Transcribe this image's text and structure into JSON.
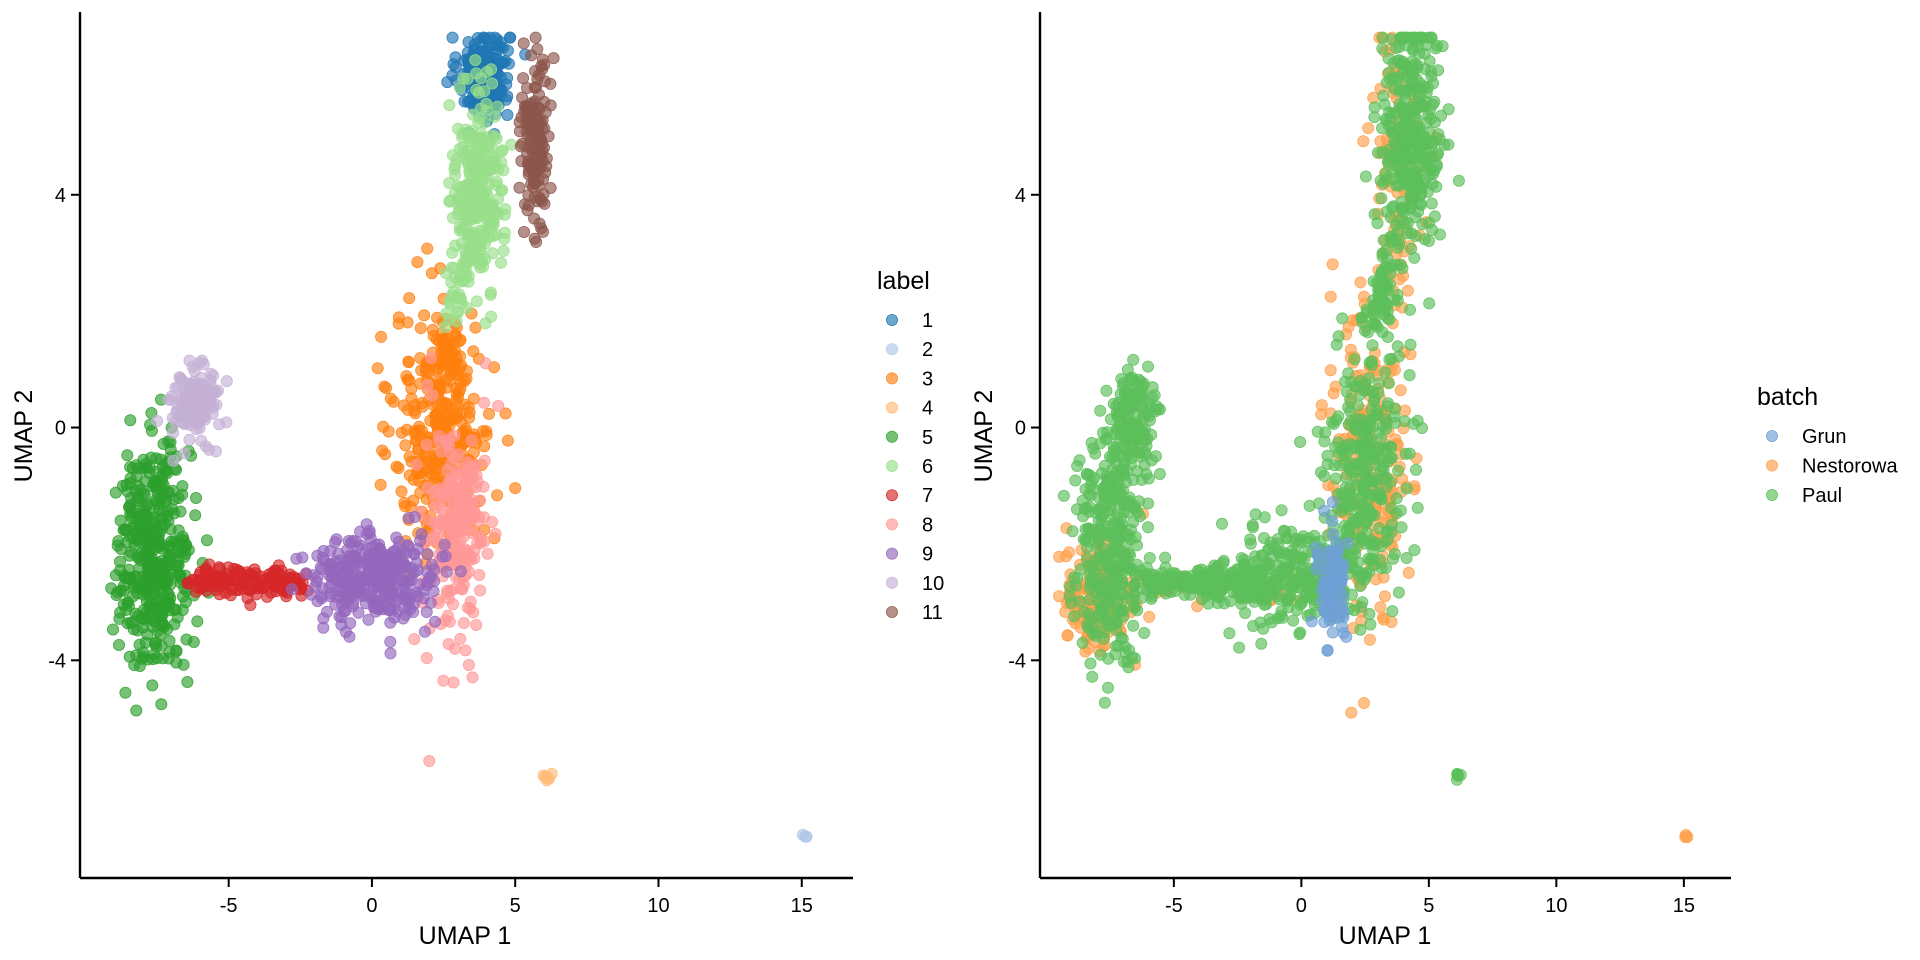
{
  "chart_data": [
    {
      "type": "scatter",
      "xlabel": "UMAP 1",
      "ylabel": "UMAP 2",
      "xlim": [
        -9.7,
        16.3
      ],
      "ylim": [
        -7.5,
        6.9
      ],
      "xticks": [
        -5,
        0,
        5,
        10,
        15
      ],
      "yticks": [
        -4,
        0,
        4
      ],
      "tick_labels_x": [
        "-5",
        "0",
        "5",
        "10",
        "15"
      ],
      "tick_labels_y": [
        "-4",
        "0",
        "4"
      ],
      "grid": false,
      "point_opacity": 0.65,
      "legend": {
        "title": "label",
        "placement": "right",
        "entries": [
          {
            "name": "1",
            "color": "#1f77b4"
          },
          {
            "name": "2",
            "color": "#aec7e8"
          },
          {
            "name": "3",
            "color": "#ff7f0e"
          },
          {
            "name": "4",
            "color": "#ffbb78"
          },
          {
            "name": "5",
            "color": "#2ca02c"
          },
          {
            "name": "6",
            "color": "#98df8a"
          },
          {
            "name": "7",
            "color": "#d62728"
          },
          {
            "name": "8",
            "color": "#ff9896"
          },
          {
            "name": "9",
            "color": "#9467bd"
          },
          {
            "name": "10",
            "color": "#c5b0d5"
          },
          {
            "name": "11",
            "color": "#8c564b"
          }
        ]
      },
      "clusters": [
        {
          "label": "1",
          "color": "#1f77b4",
          "n": 200,
          "shape": "blob",
          "center": [
            3.9,
            6.1
          ],
          "spread": [
            0.45,
            0.4
          ]
        },
        {
          "label": "2",
          "color": "#aec7e8",
          "n": 3,
          "shape": "blob",
          "center": [
            15.1,
            -7.0
          ],
          "spread": [
            0.04,
            0.03
          ]
        },
        {
          "label": "3",
          "color": "#ff7f0e",
          "n": 330,
          "shape": "blob",
          "center": [
            2.5,
            -0.1
          ],
          "spread": [
            0.85,
            1.05
          ]
        },
        {
          "label": "3",
          "color": "#ff7f0e",
          "n": 40,
          "shape": "blob",
          "center": [
            2.7,
            1.2
          ],
          "spread": [
            0.35,
            0.25
          ]
        },
        {
          "label": "4",
          "color": "#ffbb78",
          "n": 6,
          "shape": "blob",
          "center": [
            6.1,
            -6.0
          ],
          "spread": [
            0.06,
            0.05
          ]
        },
        {
          "label": "5",
          "color": "#2ca02c",
          "n": 420,
          "shape": "blob",
          "center": [
            -7.6,
            -2.2
          ],
          "spread": [
            0.65,
            0.95
          ]
        },
        {
          "label": "6",
          "color": "#98df8a",
          "n": 260,
          "shape": "blob",
          "center": [
            3.7,
            4.1
          ],
          "spread": [
            0.45,
            0.85
          ]
        },
        {
          "label": "6",
          "color": "#98df8a",
          "n": 40,
          "shape": "line",
          "from": [
            2.7,
            1.8
          ],
          "to": [
            3.6,
            3.2
          ],
          "spread": [
            0.18,
            0.18
          ]
        },
        {
          "label": "7",
          "color": "#d62728",
          "n": 150,
          "shape": "line",
          "from": [
            -6.2,
            -2.6
          ],
          "to": [
            -2.4,
            -2.7
          ],
          "spread": [
            0.3,
            0.13
          ]
        },
        {
          "label": "8",
          "color": "#ff9896",
          "n": 240,
          "shape": "blob",
          "center": [
            2.9,
            -1.8
          ],
          "spread": [
            0.55,
            0.95
          ]
        },
        {
          "label": "9",
          "color": "#9467bd",
          "n": 340,
          "shape": "blob",
          "center": [
            0.0,
            -2.6
          ],
          "spread": [
            1.2,
            0.4
          ]
        },
        {
          "label": "10",
          "color": "#c5b0d5",
          "n": 130,
          "shape": "blob",
          "center": [
            -6.2,
            0.4
          ],
          "spread": [
            0.4,
            0.32
          ]
        },
        {
          "label": "11",
          "color": "#8c564b",
          "n": 150,
          "shape": "blob",
          "center": [
            5.7,
            5.1
          ],
          "spread": [
            0.25,
            0.75
          ]
        }
      ]
    },
    {
      "type": "scatter",
      "xlabel": "UMAP 1",
      "ylabel": "UMAP 2",
      "xlim": [
        -9.7,
        16.3
      ],
      "ylim": [
        -7.5,
        6.9
      ],
      "xticks": [
        -5,
        0,
        5,
        10,
        15
      ],
      "yticks": [
        -4,
        0,
        4
      ],
      "tick_labels_x": [
        "-5",
        "0",
        "5",
        "10",
        "15"
      ],
      "tick_labels_y": [
        "-4",
        "0",
        "4"
      ],
      "grid": false,
      "point_opacity": 0.65,
      "legend": {
        "title": "batch",
        "placement": "right",
        "entries": [
          {
            "name": "Grun",
            "color": "#6fa0d6"
          },
          {
            "name": "Nestorowa",
            "color": "#ff9f4a"
          },
          {
            "name": "Paul",
            "color": "#5cbf5a"
          }
        ]
      },
      "clusters": [
        {
          "label": "Nestorowa",
          "color": "#ff9f4a",
          "n": 170,
          "shape": "blob",
          "center": [
            -7.9,
            -2.9
          ],
          "spread": [
            0.7,
            0.45
          ]
        },
        {
          "label": "Nestorowa",
          "color": "#ff9f4a",
          "n": 220,
          "shape": "blob",
          "center": [
            2.7,
            -0.6
          ],
          "spread": [
            0.85,
            1.3
          ]
        },
        {
          "label": "Nestorowa",
          "color": "#ff9f4a",
          "n": 90,
          "shape": "blob",
          "center": [
            3.9,
            4.6
          ],
          "spread": [
            0.5,
            1.2
          ]
        },
        {
          "label": "Nestorowa",
          "color": "#ff9f4a",
          "n": 60,
          "shape": "line",
          "from": [
            -6.2,
            -2.7
          ],
          "to": [
            -1.0,
            -2.8
          ],
          "spread": [
            0.25,
            0.12
          ]
        },
        {
          "label": "Nestorowa",
          "color": "#ff9f4a",
          "n": 3,
          "shape": "blob",
          "center": [
            15.1,
            -7.0
          ],
          "spread": [
            0.04,
            0.03
          ]
        },
        {
          "label": "Paul",
          "color": "#5cbf5a",
          "n": 320,
          "shape": "blob",
          "center": [
            -7.5,
            -2.1
          ],
          "spread": [
            0.65,
            0.95
          ]
        },
        {
          "label": "Paul",
          "color": "#5cbf5a",
          "n": 140,
          "shape": "blob",
          "center": [
            -6.6,
            0.2
          ],
          "spread": [
            0.4,
            0.45
          ]
        },
        {
          "label": "Paul",
          "color": "#5cbf5a",
          "n": 180,
          "shape": "line",
          "from": [
            -6.2,
            -2.6
          ],
          "to": [
            -1.5,
            -2.7
          ],
          "spread": [
            0.3,
            0.15
          ]
        },
        {
          "label": "Paul",
          "color": "#5cbf5a",
          "n": 280,
          "shape": "blob",
          "center": [
            0.0,
            -2.5
          ],
          "spread": [
            1.2,
            0.45
          ]
        },
        {
          "label": "Paul",
          "color": "#5cbf5a",
          "n": 300,
          "shape": "blob",
          "center": [
            2.5,
            -0.8
          ],
          "spread": [
            0.75,
            1.15
          ]
        },
        {
          "label": "Paul",
          "color": "#5cbf5a",
          "n": 60,
          "shape": "line",
          "from": [
            2.7,
            1.5
          ],
          "to": [
            3.6,
            3.0
          ],
          "spread": [
            0.2,
            0.2
          ]
        },
        {
          "label": "Paul",
          "color": "#5cbf5a",
          "n": 340,
          "shape": "blob",
          "center": [
            4.3,
            5.0
          ],
          "spread": [
            0.6,
            1.0
          ]
        },
        {
          "label": "Paul",
          "color": "#5cbf5a",
          "n": 6,
          "shape": "blob",
          "center": [
            6.1,
            -6.0
          ],
          "spread": [
            0.06,
            0.05
          ]
        },
        {
          "label": "Grun",
          "color": "#6fa0d6",
          "n": 90,
          "shape": "blob",
          "center": [
            1.2,
            -2.7
          ],
          "spread": [
            0.3,
            0.45
          ]
        }
      ]
    }
  ]
}
